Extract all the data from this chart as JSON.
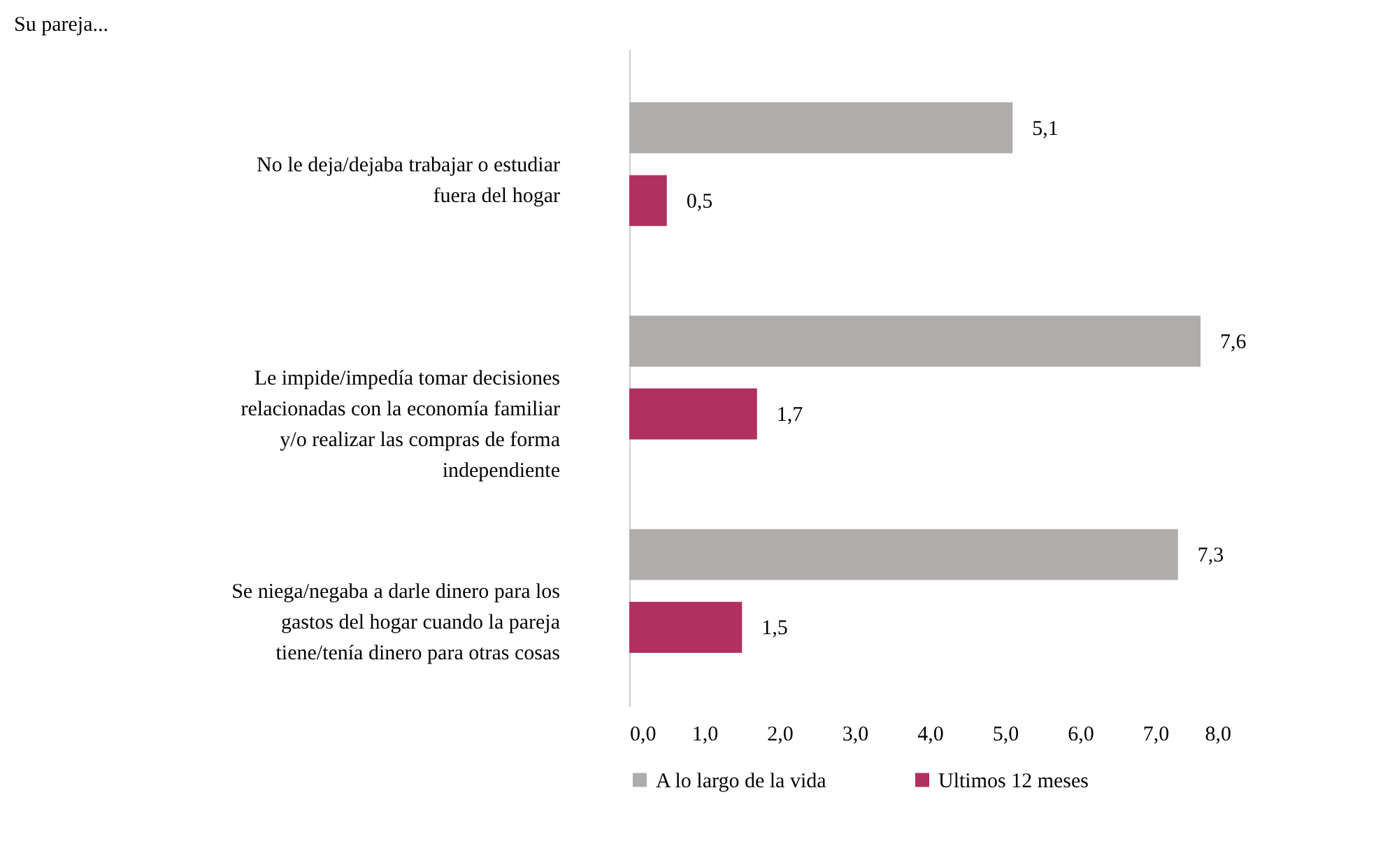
{
  "chart_data": {
    "type": "bar",
    "orientation": "horizontal",
    "title": "Su pareja...",
    "categories": [
      "No le deja/dejaba trabajar o estudiar fuera del hogar",
      "Le impide/impedía tomar decisiones relacionadas con la economía familiar y/o realizar las compras de forma independiente",
      "Se niega/negaba a darle dinero para los gastos del hogar cuando la pareja tiene/tenía dinero para otras cosas"
    ],
    "series": [
      {
        "name": "A lo largo de la vida",
        "color": "#b0acab",
        "values": [
          5.1,
          7.6,
          7.3
        ],
        "value_labels": [
          "5,1",
          "7,6",
          "7,3"
        ]
      },
      {
        "name": "Ultimos 12 meses",
        "color": "#b03060",
        "values": [
          0.5,
          1.7,
          1.5
        ],
        "value_labels": [
          "0,5",
          "1,7",
          "1,5"
        ]
      }
    ],
    "xlim": [
      0,
      8
    ],
    "xticks": [
      {
        "value": 0,
        "label": "0,0"
      },
      {
        "value": 1,
        "label": "1,0"
      },
      {
        "value": 2,
        "label": "2,0"
      },
      {
        "value": 3,
        "label": "3,0"
      },
      {
        "value": 4,
        "label": "4,0"
      },
      {
        "value": 5,
        "label": "5,0"
      },
      {
        "value": 6,
        "label": "6,0"
      },
      {
        "value": 7,
        "label": "7,0"
      },
      {
        "value": 8,
        "label": "8,0"
      }
    ],
    "grid": false,
    "legend": "bottom"
  }
}
